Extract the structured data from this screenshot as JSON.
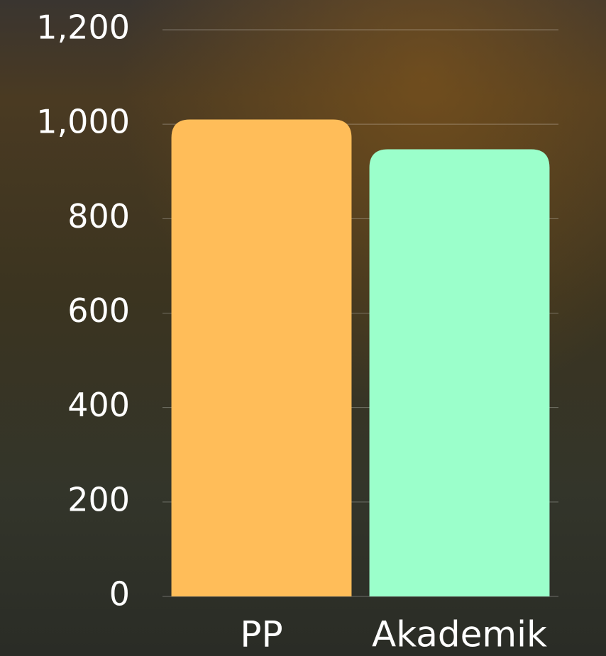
{
  "chart_data": {
    "type": "bar",
    "categories": [
      "PP",
      "Akademik"
    ],
    "series": [
      {
        "values": [
          1010,
          947
        ],
        "colors": [
          "#ffbd59",
          "#9bffcb"
        ]
      }
    ],
    "ylim": [
      0,
      1200
    ],
    "yticks": [
      0,
      200,
      400,
      600,
      800,
      {
        "value": 1000,
        "label": "1,000"
      },
      {
        "value": 1200,
        "label": "1,200"
      }
    ],
    "grid": true
  }
}
